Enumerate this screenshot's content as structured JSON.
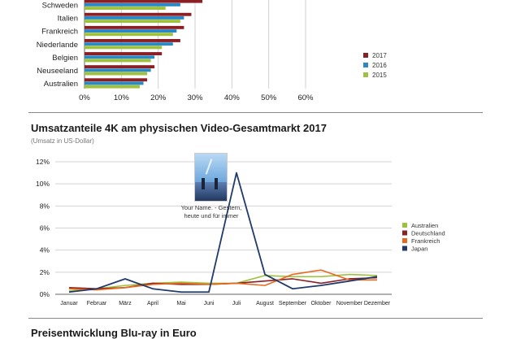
{
  "chart_data": [
    {
      "type": "bar",
      "orientation": "horizontal",
      "categories": [
        "Schweden",
        "Italien",
        "Frankreich",
        "Niederlande",
        "Belgien",
        "Neuseeland",
        "Australien"
      ],
      "series": [
        {
          "name": "2017",
          "color": "#8b1f24",
          "values": [
            32,
            29,
            27,
            26,
            21,
            19,
            17
          ]
        },
        {
          "name": "2016",
          "color": "#2a89c4",
          "values": [
            26,
            27,
            25,
            24,
            19,
            18,
            16
          ]
        },
        {
          "name": "2015",
          "color": "#9ec23d",
          "values": [
            22,
            26,
            24,
            21,
            18,
            17,
            15
          ]
        }
      ],
      "xlim": [
        0,
        60
      ],
      "xticks": [
        "0%",
        "10%",
        "20%",
        "30%",
        "40%",
        "50%",
        "60%"
      ],
      "grid": true,
      "legend": "right"
    },
    {
      "type": "line",
      "title": "Umsatzanteile 4K am physischen Video-Gesamtmarkt 2017",
      "subtitle": "(Umsatz in US-Dollar)",
      "categories": [
        "Januar",
        "Februar",
        "März",
        "April",
        "Mai",
        "Juni",
        "Juli",
        "August",
        "September",
        "Oktober",
        "November",
        "Dezember"
      ],
      "ylim": [
        0,
        12
      ],
      "yticks": [
        "0%",
        "2%",
        "4%",
        "6%",
        "8%",
        "10%",
        "12%"
      ],
      "series": [
        {
          "name": "Australien",
          "color": "#9ec23d",
          "values": [
            0.3,
            0.5,
            0.8,
            1.0,
            1.1,
            1.0,
            1.0,
            1.7,
            1.6,
            1.6,
            1.8,
            1.7
          ]
        },
        {
          "name": "Deutschland",
          "color": "#8b1f24",
          "values": [
            0.6,
            0.5,
            0.6,
            1.0,
            0.9,
            0.9,
            1.0,
            1.2,
            1.4,
            1.0,
            1.4,
            1.5
          ]
        },
        {
          "name": "Frankreich",
          "color": "#e8691e",
          "values": [
            0.5,
            0.4,
            0.6,
            0.9,
            1.0,
            0.9,
            1.0,
            0.8,
            1.8,
            2.2,
            1.3,
            1.3
          ]
        },
        {
          "name": "Japan",
          "color": "#1f3a6b",
          "values": [
            0.2,
            0.5,
            1.4,
            0.5,
            0.2,
            0.2,
            11.0,
            1.8,
            0.5,
            0.8,
            1.2,
            1.6
          ]
        }
      ],
      "annotation": {
        "text_lines": [
          "Your Name. - Gestern,",
          "heute und für immer"
        ],
        "month": "Juli"
      },
      "grid": true,
      "legend": "right"
    }
  ],
  "next_section": {
    "title": "Preisentwicklung Blu-ray in Euro"
  },
  "poster": {
    "icon": "movie-poster-icon",
    "sky": "#7fb7e6",
    "ground": "#2b4a78"
  }
}
